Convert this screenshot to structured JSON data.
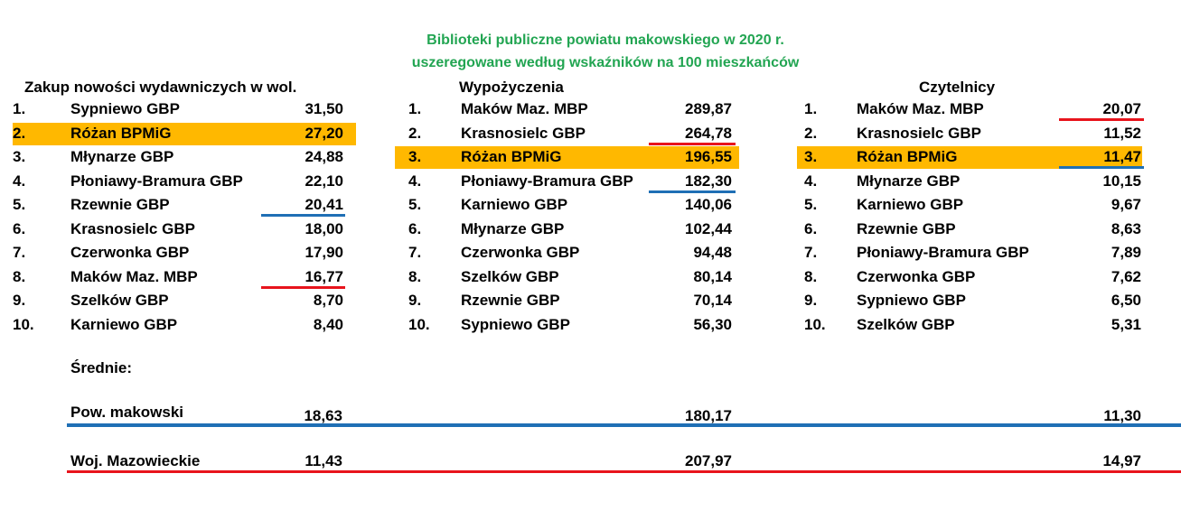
{
  "header": {
    "title": "Biblioteki publiczne powiatu makowskiego w 2020 r.",
    "subtitle": "uszeregowane według wskaźników na 100 mieszkańców"
  },
  "colors": {
    "title": "#22a552",
    "highlight": "#ffb800",
    "blue_line": "#1f6fb5",
    "red_line": "#e8141c"
  },
  "sections": [
    {
      "title": "Zakup nowości wydawniczych w wol.",
      "highlight_rank": "2.",
      "rows": [
        {
          "rank": "1.",
          "name": "Sypniewo GBP",
          "value": "31,50"
        },
        {
          "rank": "2.",
          "name": "Różan BPMiG",
          "value": "27,20"
        },
        {
          "rank": "3.",
          "name": "Młynarze GBP",
          "value": "24,88"
        },
        {
          "rank": "4.",
          "name": "Płoniawy-Bramura GBP",
          "value": "22,10"
        },
        {
          "rank": "5.",
          "name": "Rzewnie GBP",
          "value": "20,41"
        },
        {
          "rank": "6.",
          "name": "Krasnosielc GBP",
          "value": "18,00"
        },
        {
          "rank": "7.",
          "name": "Czerwonka GBP",
          "value": "17,90"
        },
        {
          "rank": "8.",
          "name": "Maków Maz. MBP",
          "value": "16,77"
        },
        {
          "rank": "9.",
          "name": "Szelków GBP",
          "value": "8,70"
        },
        {
          "rank": "10.",
          "name": "Karniewo GBP",
          "value": "8,40"
        }
      ]
    },
    {
      "title": "Wypożyczenia",
      "highlight_rank": "3.",
      "rows": [
        {
          "rank": "1.",
          "name": "Maków Maz. MBP",
          "value": "289,87"
        },
        {
          "rank": "2.",
          "name": "Krasnosielc GBP",
          "value": "264,78"
        },
        {
          "rank": "3.",
          "name": "Różan BPMiG",
          "value": "196,55"
        },
        {
          "rank": "4.",
          "name": "Płoniawy-Bramura GBP",
          "value": "182,30"
        },
        {
          "rank": "5.",
          "name": "Karniewo GBP",
          "value": "140,06"
        },
        {
          "rank": "6.",
          "name": "Młynarze GBP",
          "value": "102,44"
        },
        {
          "rank": "7.",
          "name": "Czerwonka GBP",
          "value": "94,48"
        },
        {
          "rank": "8.",
          "name": "Szelków GBP",
          "value": "80,14"
        },
        {
          "rank": "9.",
          "name": "Rzewnie GBP",
          "value": "70,14"
        },
        {
          "rank": "10.",
          "name": "Sypniewo GBP",
          "value": "56,30"
        }
      ]
    },
    {
      "title": "Czytelnicy",
      "highlight_rank": "3.",
      "rows": [
        {
          "rank": "1.",
          "name": "Maków Maz. MBP",
          "value": "20,07"
        },
        {
          "rank": "2.",
          "name": "Krasnosielc GBP",
          "value": "11,52"
        },
        {
          "rank": "3.",
          "name": "Różan BPMiG",
          "value": "11,47"
        },
        {
          "rank": "4.",
          "name": "Młynarze GBP",
          "value": "10,15"
        },
        {
          "rank": "5.",
          "name": "Karniewo GBP",
          "value": "9,67"
        },
        {
          "rank": "6.",
          "name": "Rzewnie GBP",
          "value": "8,63"
        },
        {
          "rank": "7.",
          "name": "Płoniawy-Bramura GBP",
          "value": "7,89"
        },
        {
          "rank": "8.",
          "name": "Czerwonka GBP",
          "value": "7,62"
        },
        {
          "rank": "9.",
          "name": "Sypniewo GBP",
          "value": "6,50"
        },
        {
          "rank": "10.",
          "name": "Szelków GBP",
          "value": "5,31"
        }
      ]
    }
  ],
  "averages": {
    "label": "Średnie:",
    "county": {
      "name": "Pow. makowski",
      "values": [
        "18,63",
        "180,17",
        "11,30"
      ]
    },
    "voivodeship": {
      "name": "Woj. Mazowieckie",
      "values": [
        "11,43",
        "207,97",
        "14,97"
      ]
    }
  }
}
